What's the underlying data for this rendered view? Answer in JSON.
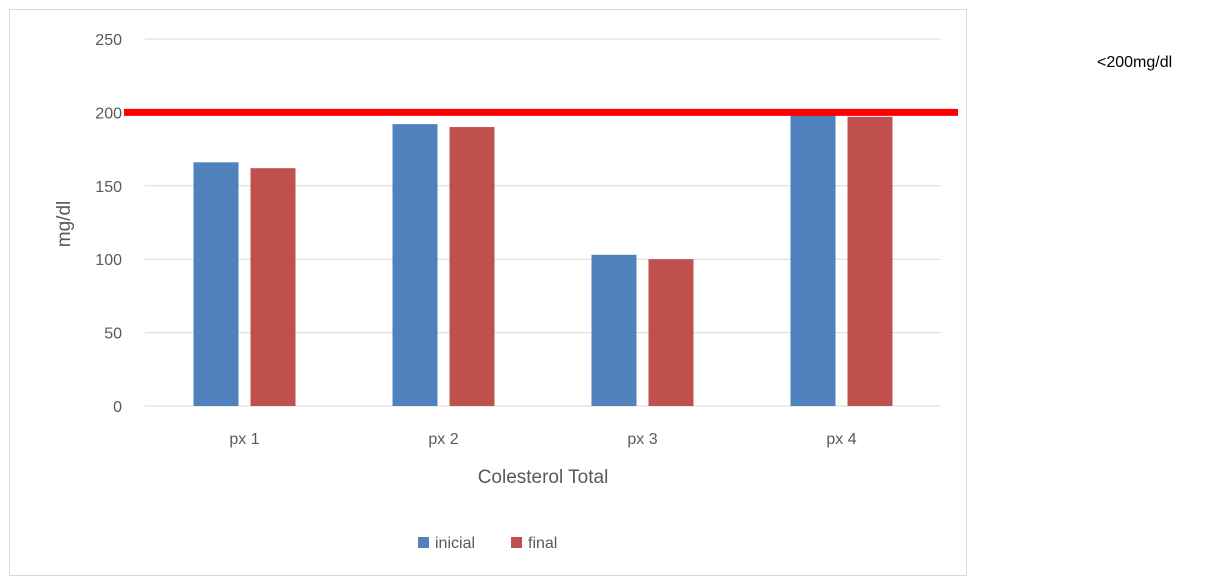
{
  "chart_data": {
    "type": "bar",
    "title": "",
    "xlabel": "Colesterol Total",
    "ylabel": "mg/dl",
    "categories": [
      "px 1",
      "px 2",
      "px 3",
      "px 4"
    ],
    "series": [
      {
        "name": "inicial",
        "color": "#4f81bd",
        "values": [
          166,
          192,
          103,
          199
        ]
      },
      {
        "name": "final",
        "color": "#c0504d",
        "values": [
          162,
          190,
          100,
          197
        ]
      }
    ],
    "ylim": [
      0,
      250
    ],
    "yticks": [
      0,
      50,
      100,
      150,
      200,
      250
    ],
    "grid": true,
    "legend": "bottom",
    "reference_line": {
      "value": 200,
      "color": "#ff0000",
      "label": "<200mg/dl"
    }
  }
}
